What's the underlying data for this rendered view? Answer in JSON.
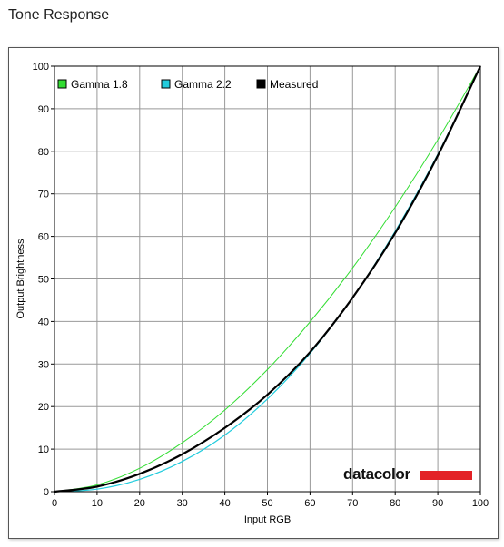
{
  "page": {
    "title": "Tone Response"
  },
  "logo": {
    "text": "datacolor",
    "bar_color": "#e32227"
  },
  "colors": {
    "gamma_1_8": "#33dd33",
    "gamma_2_2": "#22ccdd",
    "measured": "#000000",
    "grid": "#999999"
  },
  "chart_data": {
    "type": "line",
    "title": "",
    "xlabel": "Input RGB",
    "ylabel": "Output Brightness",
    "xlim": [
      0,
      100
    ],
    "ylim": [
      0,
      100
    ],
    "xticks": [
      0,
      10,
      20,
      30,
      40,
      50,
      60,
      70,
      80,
      90,
      100
    ],
    "yticks": [
      0,
      10,
      20,
      30,
      40,
      50,
      60,
      70,
      80,
      90,
      100
    ],
    "grid": true,
    "legend_position": "top-left",
    "x": [
      0,
      10,
      20,
      30,
      40,
      50,
      60,
      70,
      80,
      90,
      100
    ],
    "series": [
      {
        "name": "Gamma 1.8",
        "color": "#33dd33",
        "values": [
          0,
          1.6,
          5.5,
          11.5,
          19.2,
          28.7,
          39.9,
          52.6,
          66.9,
          82.7,
          100
        ]
      },
      {
        "name": "Gamma 2.2",
        "color": "#22ccdd",
        "values": [
          0,
          0.6,
          2.9,
          7.1,
          13.3,
          21.8,
          32.5,
          45.6,
          61.2,
          79.3,
          100
        ]
      },
      {
        "name": "Measured",
        "color": "#000000",
        "values": [
          0,
          1.2,
          4.2,
          8.8,
          15.0,
          22.8,
          32.8,
          45.6,
          60.8,
          79.0,
          100
        ]
      }
    ]
  }
}
